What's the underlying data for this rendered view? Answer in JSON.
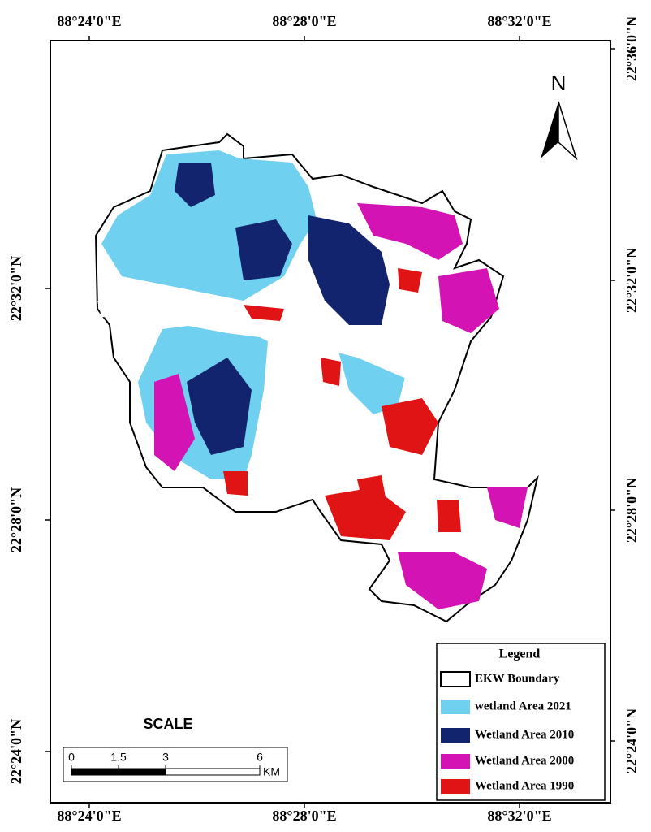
{
  "coordinates": {
    "top": [
      "88°24'0\"E",
      "88°28'0\"E",
      "88°32'0\"E"
    ],
    "bottom": [
      "88°24'0\"E",
      "88°28'0\"E",
      "88°32'0\"E"
    ],
    "left": [
      "22°32'0\"N",
      "22°28'0\"N",
      "22°24'0\"N"
    ],
    "right": [
      "22°36'0\"N",
      "22°32'0\"N",
      "22°28'0\"N",
      "22°24'0\"N"
    ]
  },
  "north_arrow": "N",
  "scale": {
    "title": "SCALE",
    "ticks": [
      0,
      1.5,
      3,
      6
    ],
    "unit": "KM"
  },
  "legend": {
    "title": "Legend",
    "items": [
      {
        "label": "EKW Boundary",
        "color": "#ffffff"
      },
      {
        "label": "wetland Area 2021",
        "color": "#6fd0f0"
      },
      {
        "label": "Wetland Area 2010",
        "color": "#13246e"
      },
      {
        "label": "Wetland Area 2000",
        "color": "#d313b4"
      },
      {
        "label": "Wetland Area 1990",
        "color": "#e01414"
      }
    ]
  }
}
